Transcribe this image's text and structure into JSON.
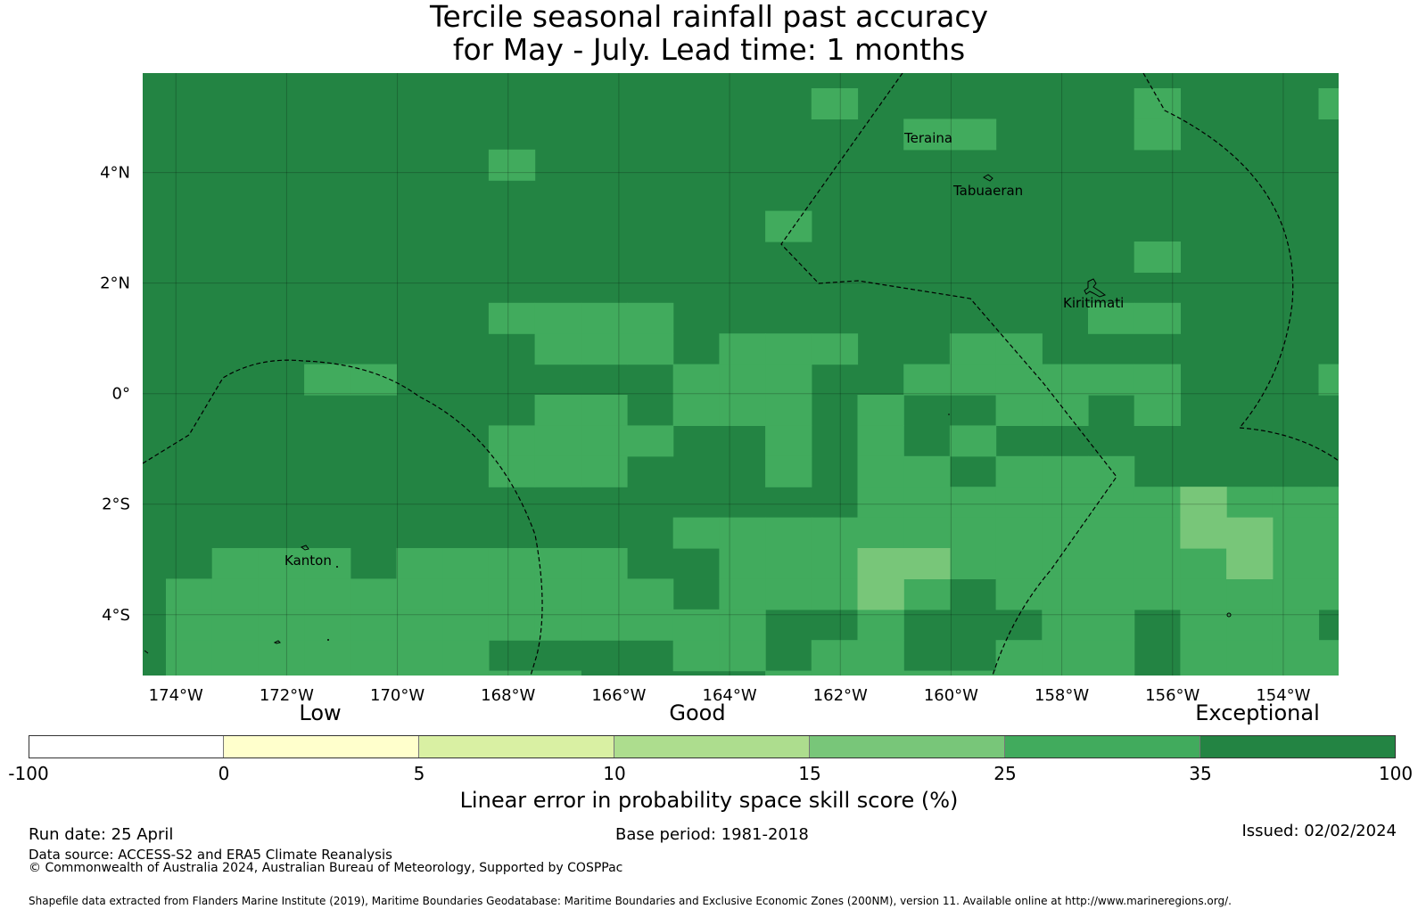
{
  "title": {
    "line1": "Tercile seasonal rainfall past accuracy",
    "line2": "for May - July. Lead time: 1 months"
  },
  "map": {
    "lon_range": [
      -174.6,
      -153.0
    ],
    "lat_range": [
      -5.1,
      5.8
    ],
    "lon_ticks": [
      "174°W",
      "172°W",
      "170°W",
      "168°W",
      "166°W",
      "164°W",
      "162°W",
      "160°W",
      "158°W",
      "156°W",
      "154°W"
    ],
    "lat_ticks": [
      "4°N",
      "2°N",
      "0°",
      "2°S",
      "4°S"
    ],
    "places": [
      "Teraina",
      "Tabuaeran",
      "Kiritimati",
      "Kanton"
    ],
    "grid_cell_degrees": 0.83,
    "cell_skill_classes": {
      "dark_green": "35 to 100",
      "mid_green": "25 to 35",
      "light_green": "15 to 25"
    }
  },
  "colorbar": {
    "category_labels": [
      "Low",
      "Good",
      "Exceptional"
    ],
    "tick_labels": [
      "-100",
      "0",
      "5",
      "10",
      "15",
      "25",
      "35",
      "100"
    ],
    "colors": [
      "#ffffff",
      "#ffffcc",
      "#d9f0a3",
      "#addd8e",
      "#78c679",
      "#41ab5d",
      "#238443"
    ],
    "title": "Linear error in probability space skill score (%)"
  },
  "footer": {
    "run_date": "Run date: 25 April",
    "base_period": "Base period: 1981-2018",
    "issued": "Issued: 02/02/2024",
    "data_source": "Data source: ACCESS-S2 and ERA5 Climate Reanalysis",
    "copyright": "© Commonwealth of Australia 2024, Australian Bureau of Meteorology, Supported by COSPPac",
    "shapefile": "Shapefile data extracted from Flanders Marine Institute (2019), Maritime Boundaries Geodatabase: Maritime Boundaries and Exclusive Economic Zones (200NM), version 11. Available online at http://www.marineregions.org/."
  }
}
